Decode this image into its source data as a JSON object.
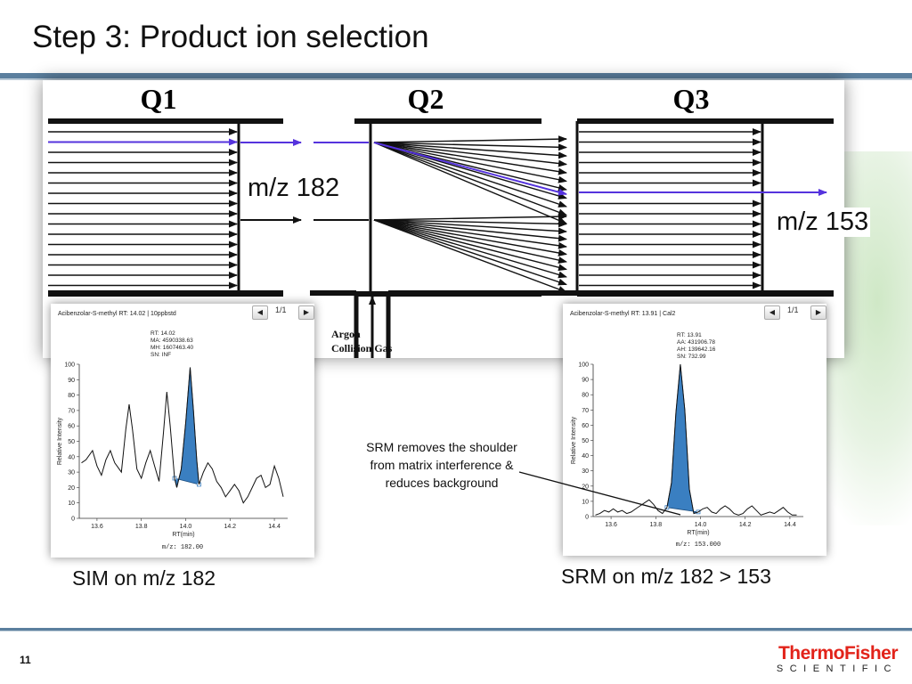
{
  "slide": {
    "title": "Step 3: Product ion selection",
    "page_number": "11",
    "logo_line1": "ThermoFisher",
    "logo_line2": "SCIENTIFIC"
  },
  "diagram": {
    "q1_label": "Q1",
    "q2_label": "Q2",
    "q3_label": "Q3",
    "precursor_label": "m/z 182",
    "product_label": "m/z 153",
    "gas_label_line1": "Argon",
    "gas_label_line2": "Collision Gas",
    "colors": {
      "selected_ion": "#5533dd",
      "lines": "#111111"
    }
  },
  "sim_panel": {
    "header": "Acibenzolar-S-methyl  RT: 14.02 | 10ppbstd",
    "pager": "1/1",
    "stats": [
      "RT: 14.02",
      "MA: 4590338.63",
      "MH: 1607463.40",
      "SN: INF"
    ],
    "ylabel": "Relative Intensity",
    "xlabel": "RT(min)",
    "mz_footer": "m/z: 182.00",
    "caption": "SIM on m/z 182"
  },
  "srm_panel": {
    "header": "Acibenzolar-S-methyl  RT: 13.91 | Cal2",
    "pager": "1/1",
    "stats": [
      "RT: 13.91",
      "AA: 431906.78",
      "AH: 139642.16",
      "SN: 732.99"
    ],
    "ylabel": "Relative Intensity",
    "xlabel": "RT(min)",
    "mz_footer": "m/z: 153.000",
    "caption": "SRM on m/z 182 > 153"
  },
  "annotation": "SRM removes the shoulder from matrix interference & reduces background",
  "chart_data": [
    {
      "type": "line",
      "ylabel": "Relative Intensity",
      "xlabel": "RT(min)",
      "xlim": [
        13.52,
        14.46
      ],
      "ylim": [
        0,
        100
      ],
      "yticks": [
        0,
        10,
        20,
        30,
        40,
        50,
        60,
        70,
        80,
        90,
        100
      ],
      "xticks": [
        13.6,
        13.8,
        14.0,
        14.2,
        14.4
      ],
      "series": [
        {
          "values": [
            [
              13.53,
              36
            ],
            [
              13.55,
              38
            ],
            [
              13.58,
              44
            ],
            [
              13.6,
              34
            ],
            [
              13.62,
              28
            ],
            [
              13.64,
              38
            ],
            [
              13.66,
              44
            ],
            [
              13.68,
              36
            ],
            [
              13.71,
              30
            ],
            [
              13.73,
              58
            ],
            [
              13.745,
              74
            ],
            [
              13.76,
              58
            ],
            [
              13.78,
              32
            ],
            [
              13.8,
              26
            ],
            [
              13.82,
              36
            ],
            [
              13.84,
              44
            ],
            [
              13.86,
              34
            ],
            [
              13.88,
              24
            ],
            [
              13.9,
              56
            ],
            [
              13.915,
              82
            ],
            [
              13.93,
              60
            ],
            [
              13.95,
              26
            ],
            [
              13.96,
              20
            ],
            [
              13.98,
              32
            ],
            [
              14.0,
              62
            ],
            [
              14.02,
              98
            ],
            [
              14.035,
              70
            ],
            [
              14.05,
              38
            ],
            [
              14.06,
              22
            ],
            [
              14.08,
              30
            ],
            [
              14.1,
              36
            ],
            [
              14.12,
              32
            ],
            [
              14.14,
              24
            ],
            [
              14.16,
              20
            ],
            [
              14.18,
              14
            ],
            [
              14.2,
              18
            ],
            [
              14.22,
              22
            ],
            [
              14.24,
              18
            ],
            [
              14.26,
              10
            ],
            [
              14.28,
              14
            ],
            [
              14.3,
              20
            ],
            [
              14.32,
              26
            ],
            [
              14.34,
              28
            ],
            [
              14.36,
              20
            ],
            [
              14.38,
              22
            ],
            [
              14.4,
              34
            ],
            [
              14.42,
              26
            ],
            [
              14.44,
              14
            ]
          ]
        }
      ],
      "shaded_peak_x_range": [
        13.95,
        14.07
      ]
    },
    {
      "type": "line",
      "ylabel": "Relative Intensity",
      "xlabel": "RT(min)",
      "xlim": [
        13.52,
        14.46
      ],
      "ylim": [
        0,
        100
      ],
      "yticks": [
        0,
        10,
        20,
        30,
        40,
        50,
        60,
        70,
        80,
        90,
        100
      ],
      "xticks": [
        13.6,
        13.8,
        14.0,
        14.2,
        14.4
      ],
      "series": [
        {
          "values": [
            [
              13.53,
              1
            ],
            [
              13.55,
              2
            ],
            [
              13.57,
              4
            ],
            [
              13.59,
              3
            ],
            [
              13.61,
              5
            ],
            [
              13.63,
              3
            ],
            [
              13.65,
              4
            ],
            [
              13.67,
              2
            ],
            [
              13.69,
              3
            ],
            [
              13.71,
              5
            ],
            [
              13.73,
              7
            ],
            [
              13.75,
              9
            ],
            [
              13.77,
              11
            ],
            [
              13.79,
              8
            ],
            [
              13.81,
              4
            ],
            [
              13.83,
              2
            ],
            [
              13.85,
              6
            ],
            [
              13.87,
              22
            ],
            [
              13.89,
              68
            ],
            [
              13.91,
              100
            ],
            [
              13.93,
              70
            ],
            [
              13.95,
              18
            ],
            [
              13.97,
              2
            ],
            [
              13.99,
              3
            ],
            [
              14.01,
              5
            ],
            [
              14.03,
              6
            ],
            [
              14.05,
              3
            ],
            [
              14.07,
              2
            ],
            [
              14.09,
              5
            ],
            [
              14.11,
              7
            ],
            [
              14.13,
              5
            ],
            [
              14.15,
              2
            ],
            [
              14.17,
              1
            ],
            [
              14.19,
              2
            ],
            [
              14.21,
              5
            ],
            [
              14.23,
              7
            ],
            [
              14.25,
              4
            ],
            [
              14.27,
              1
            ],
            [
              14.29,
              2
            ],
            [
              14.31,
              3
            ],
            [
              14.33,
              2
            ],
            [
              14.35,
              4
            ],
            [
              14.37,
              6
            ],
            [
              14.39,
              3
            ],
            [
              14.41,
              1
            ],
            [
              14.43,
              1
            ]
          ]
        }
      ],
      "shaded_peak_x_range": [
        13.84,
        13.99
      ]
    }
  ]
}
